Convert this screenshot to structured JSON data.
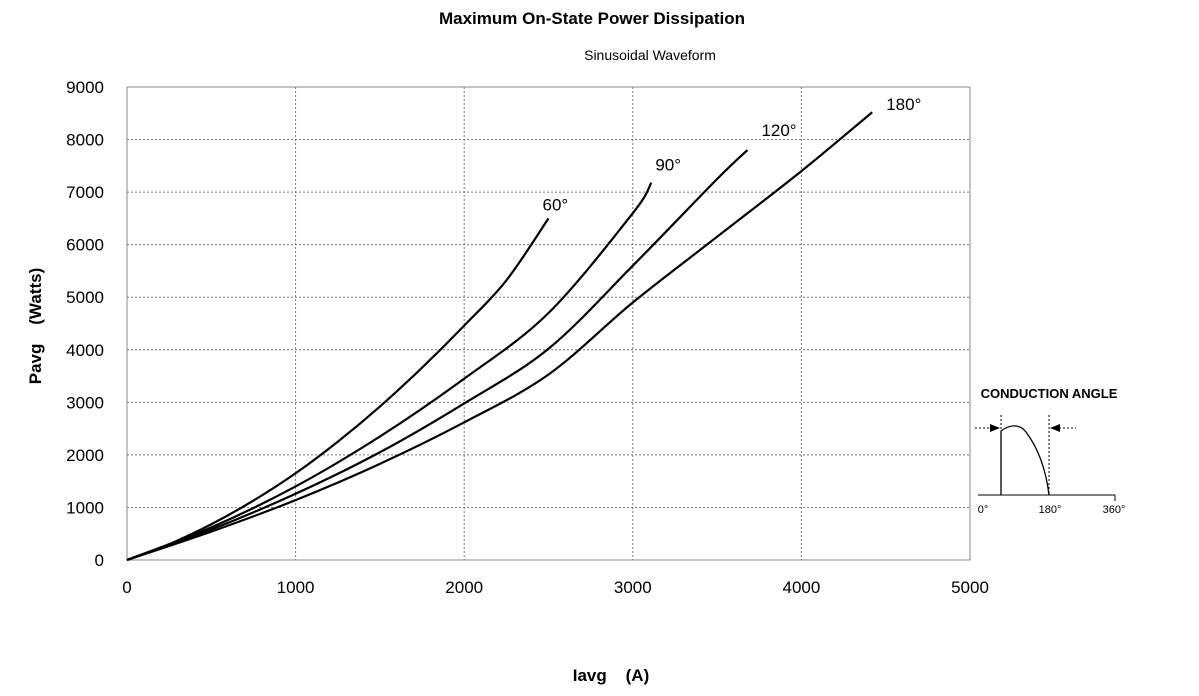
{
  "chart_data": {
    "type": "line",
    "title": "Maximum On-State Power Dissipation",
    "subtitle": "Sinusoidal Waveform",
    "xlabel": "Iavg    (A)",
    "ylabel": "Pavg    (Watts)",
    "xlim": [
      0,
      5000
    ],
    "ylim": [
      0,
      9000
    ],
    "x_ticks": [
      "0",
      "1000",
      "2000",
      "3000",
      "4000",
      "5000"
    ],
    "y_ticks": [
      "0",
      "1000",
      "2000",
      "3000",
      "4000",
      "5000",
      "6000",
      "7000",
      "8000",
      "9000"
    ],
    "grid": true,
    "series": [
      {
        "name": "60°",
        "x": [
          0,
          250,
          500,
          750,
          1000,
          1250,
          1500,
          1750,
          2000,
          2250,
          2500
        ],
        "y": [
          0,
          300,
          680,
          1130,
          1650,
          2250,
          2920,
          3660,
          4460,
          5320,
          6500
        ]
      },
      {
        "name": "90°",
        "x": [
          0,
          500,
          1000,
          1500,
          2000,
          2500,
          3000,
          3110
        ],
        "y": [
          0,
          620,
          1400,
          2350,
          3450,
          4700,
          6600,
          7180
        ]
      },
      {
        "name": "120°",
        "x": [
          0,
          500,
          1000,
          1500,
          2000,
          2500,
          3000,
          3500,
          3680
        ],
        "y": [
          0,
          580,
          1260,
          2050,
          2980,
          4020,
          5600,
          7250,
          7800
        ]
      },
      {
        "name": "180°",
        "x": [
          0,
          500,
          1000,
          1500,
          2000,
          2500,
          3000,
          3500,
          4000,
          4420
        ],
        "y": [
          0,
          540,
          1140,
          1830,
          2620,
          3530,
          4900,
          6150,
          7400,
          8520
        ]
      }
    ],
    "inset": {
      "title": "CONDUCTION ANGLE",
      "ticks": [
        "0°",
        "180°",
        "360°"
      ]
    }
  }
}
